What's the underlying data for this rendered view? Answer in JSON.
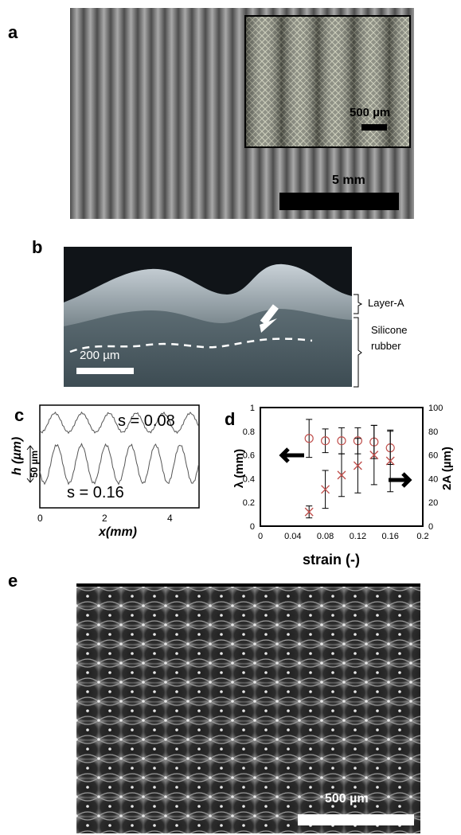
{
  "panels": {
    "a": {
      "letter": "a",
      "main_scale": "5 mm",
      "inset_scale": "500 µm"
    },
    "b": {
      "letter": "b",
      "scale": "200 µm",
      "layer_label": "Layer-A",
      "rubber_label": "Silicone\nrubber"
    },
    "c": {
      "letter": "c",
      "ylabel": "h (µm)",
      "xlabel": "x(mm)",
      "scale_label": "50 µm",
      "label_top": "s = 0.08",
      "label_bottom": "s = 0.16",
      "xticks": [
        "0",
        "2",
        "4"
      ]
    },
    "d": {
      "letter": "d",
      "xlabel": "strain (-)",
      "ylabel_left": "λ (mm)",
      "ylabel_right": "2A (µm)"
    },
    "e": {
      "letter": "e",
      "scale": "500 µm"
    }
  },
  "chart_data": [
    {
      "type": "scatter",
      "panel": "d",
      "xlabel": "strain (-)",
      "ylabel": "λ (mm)",
      "y2label": "2A (µm)",
      "xlim": [
        0,
        0.2
      ],
      "ylim": [
        0,
        1
      ],
      "y2lim": [
        0,
        100
      ],
      "xticks": [
        "0",
        "0.04",
        "0.08",
        "0.12",
        "0.16",
        "0.2"
      ],
      "yticks": [
        "0",
        "0.2",
        "0.4",
        "0.6",
        "0.8",
        "1"
      ],
      "y2ticks": [
        "0",
        "20",
        "40",
        "60",
        "80",
        "100"
      ],
      "series": [
        {
          "marker": "circle",
          "axis": "left",
          "color": "#c0504d",
          "x": [
            0.06,
            0.08,
            0.1,
            0.12,
            0.14,
            0.16
          ],
          "y": [
            0.74,
            0.72,
            0.72,
            0.72,
            0.71,
            0.66
          ],
          "err": [
            0.16,
            0.1,
            0.11,
            0.11,
            0.14,
            0.14
          ]
        },
        {
          "marker": "cross",
          "axis": "right",
          "color": "#c0504d",
          "x": [
            0.06,
            0.08,
            0.1,
            0.12,
            0.14,
            0.16
          ],
          "y": [
            12,
            31,
            43,
            51,
            60,
            55
          ],
          "err": [
            5,
            16,
            18,
            23,
            25,
            26
          ]
        }
      ]
    }
  ]
}
